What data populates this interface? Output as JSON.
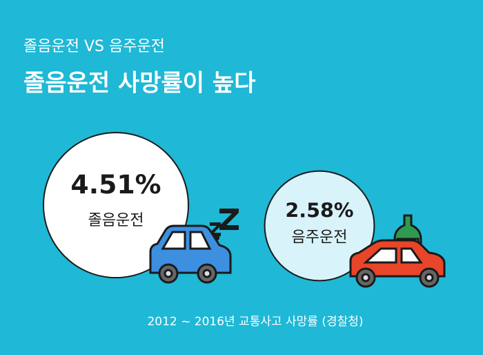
{
  "chart_data": {
    "type": "bubble",
    "subtitle": "졸음운전 VS 음주운전",
    "title": "졸음운전 사망률이 높다",
    "categories": [
      "졸음운전",
      "음주운전"
    ],
    "values": [
      4.51,
      2.58
    ],
    "value_labels": [
      "4.51%",
      "2.58%"
    ],
    "colors": [
      "#ffffff",
      "#d8f3f9"
    ],
    "source": "2012 ~ 2016년 교통사고 사망률 (경찰청)"
  }
}
